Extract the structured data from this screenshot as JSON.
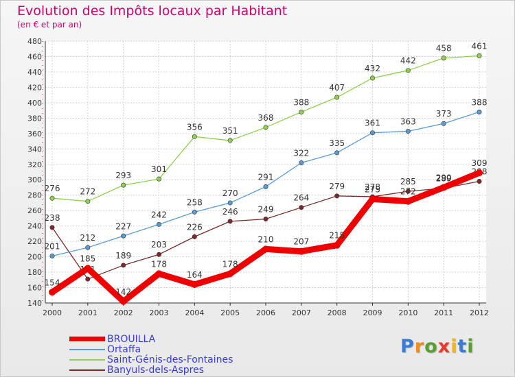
{
  "chart_data": {
    "type": "line",
    "title": "Evolution des Impôts locaux par Habitant",
    "subtitle": "(en € et par an)",
    "x": [
      "2000",
      "2001",
      "2002",
      "2003",
      "2004",
      "2005",
      "2006",
      "2007",
      "2008",
      "2009",
      "2010",
      "2011",
      "2012"
    ],
    "ylim": [
      140,
      480
    ],
    "yticks": [
      140,
      160,
      180,
      200,
      220,
      240,
      260,
      280,
      300,
      320,
      340,
      360,
      380,
      400,
      420,
      440,
      460,
      480
    ],
    "grid": true,
    "legend_position": "bottom-left",
    "series": [
      {
        "name": "BROUILLA",
        "color": "#ee0000",
        "values": [
          154,
          185,
          142,
          178,
          164,
          178,
          210,
          207,
          215,
          275,
          272,
          290,
          309
        ]
      },
      {
        "name": "Ortaffa",
        "color": "#5b9bd5",
        "values": [
          201,
          212,
          227,
          242,
          258,
          270,
          291,
          322,
          335,
          361,
          363,
          373,
          388
        ]
      },
      {
        "name": "Saint-Génis-des-Fontaines",
        "color": "#8fd14f",
        "values": [
          276,
          272,
          293,
          301,
          356,
          351,
          368,
          388,
          407,
          432,
          442,
          458,
          461
        ]
      },
      {
        "name": "Banyuls-dels-Aspres",
        "color": "#7b2a2a",
        "values": [
          238,
          171,
          189,
          203,
          226,
          246,
          249,
          264,
          279,
          278,
          285,
          289,
          298
        ]
      }
    ]
  },
  "logo": {
    "letters": [
      "P",
      "r",
      "o",
      "x",
      "i",
      "t",
      "i"
    ],
    "colors": [
      "#3a7bd5",
      "#f28c1e",
      "#5a9e2f",
      "#e63c2f",
      "#f2b51e",
      "#3a7bd5",
      "#5a9e2f"
    ]
  }
}
